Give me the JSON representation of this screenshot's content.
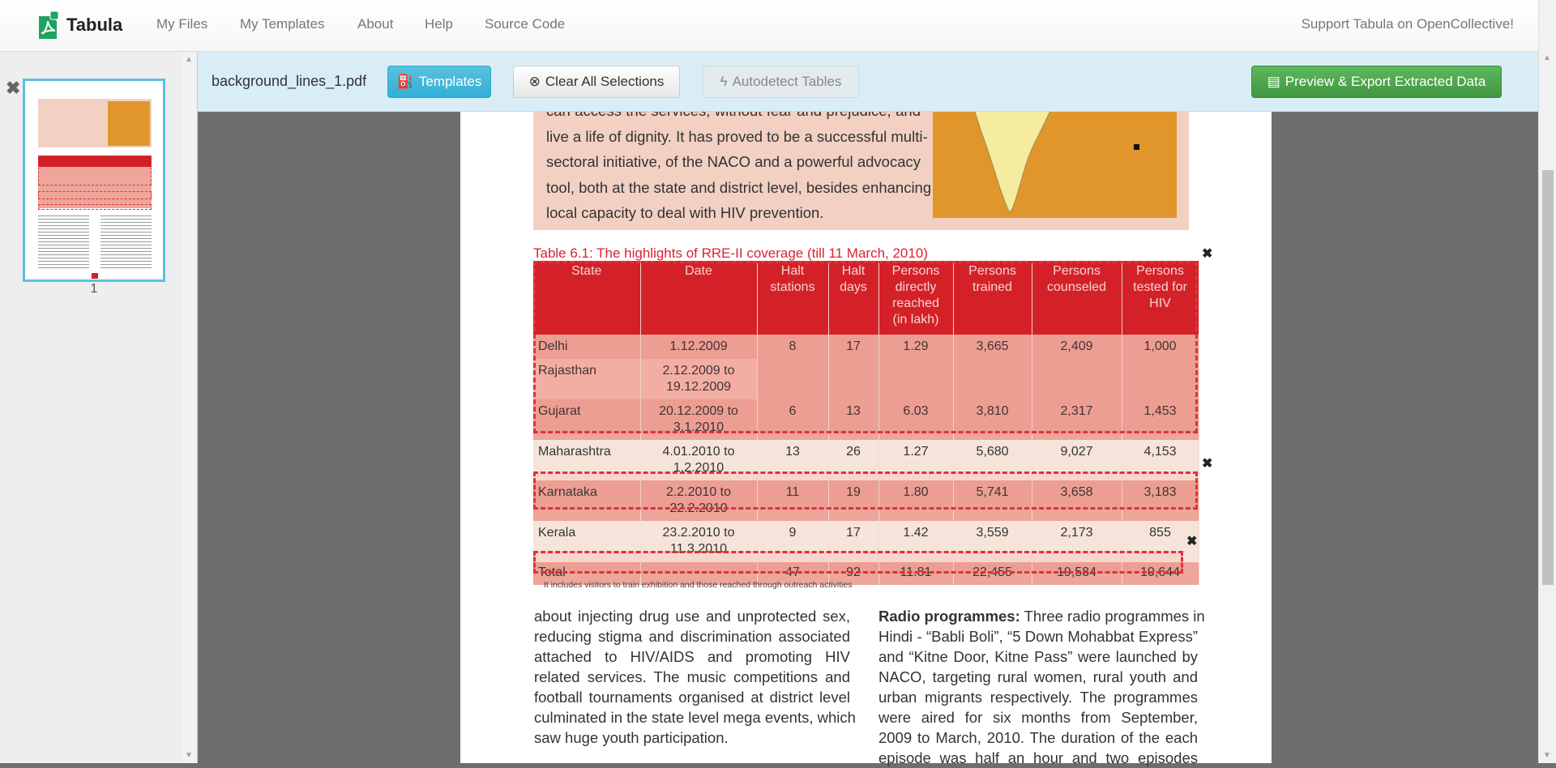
{
  "navbar": {
    "brand": "Tabula",
    "links": [
      "My Files",
      "My Templates",
      "About",
      "Help",
      "Source Code"
    ],
    "support": "Support Tabula on OpenCollective!"
  },
  "sidebar": {
    "page_number": "1"
  },
  "toolbar": {
    "filename": "background_lines_1.pdf",
    "templates": "Templates",
    "clear": "Clear All Selections",
    "autodetect": "Autodetect Tables",
    "preview": "Preview & Export Extracted Data"
  },
  "colors": {
    "accent": "#5bc0de",
    "export": "#5cb85c",
    "selection": "#e0313a",
    "table_header": "#d21f27"
  },
  "document": {
    "box_lines": [
      "can access the services, without fear and prejudice, and",
      "live a life of dignity. It has proved to be a successful multi-",
      "sectoral initiative, of the NACO and a powerful advocacy",
      "tool, both at the state and district level, besides enhancing",
      "local capacity to deal with HIV prevention."
    ],
    "table_title": "Table 6.1: The highlights of RRE-II coverage (till 11 March, 2010)",
    "headers": [
      "State",
      "Date",
      "Halt stations",
      "Halt days",
      "Persons directly reached (in lakh)",
      "Persons trained",
      "Persons counseled",
      "Persons tested for HIV"
    ],
    "rows": [
      [
        "Delhi",
        "1.12.2009",
        "8",
        "17",
        "1.29",
        "3,665",
        "2,409",
        "1,000"
      ],
      [
        "Rajasthan",
        "2.12.2009 to 19.12.2009"
      ],
      [
        "Gujarat",
        "20.12.2009 to 3.1.2010",
        "6",
        "13",
        "6.03",
        "3,810",
        "2,317",
        "1,453"
      ],
      [
        "Maharashtra",
        "4.01.2010 to 1.2.2010",
        "13",
        "26",
        "1.27",
        "5,680",
        "9,027",
        "4,153"
      ],
      [
        "Karnataka",
        "2.2.2010 to 22.2.2010",
        "11",
        "19",
        "1.80",
        "5,741",
        "3,658",
        "3,183"
      ],
      [
        "Kerala",
        "23.2.2010 to 11.3.2010",
        "9",
        "17",
        "1.42",
        "3,559",
        "2,173",
        "855"
      ],
      [
        "Total",
        "",
        "47",
        "92",
        "11.81",
        "22,455",
        "19,584",
        "10,644"
      ]
    ],
    "footnote": "It includes visitors to train exhibition and those reached through outreach activities",
    "left_col": [
      "about injecting drug use and unprotected sex,",
      "reducing stigma and discrimination associated",
      "attached to HIV/AIDS and promoting HIV",
      "related services. The music competitions and",
      "football tournaments organised at district level",
      "culminated in the state level mega events, which",
      "saw huge youth participation."
    ],
    "right_col": {
      "bold": "Radio programmes:",
      "lines": [
        " Three radio programmes in",
        "Hindi - “Babli Boli”, “5 Down Mohabbat Express”",
        "and “Kitne Door, Kitne Pass” were launched by",
        "NACO, targeting rural women, rural youth and",
        "urban migrants respectively. The programmes",
        "were aired for six months from September,",
        "2009 to March, 2010. The duration of the each",
        "episode was half an hour and two episodes"
      ]
    }
  }
}
